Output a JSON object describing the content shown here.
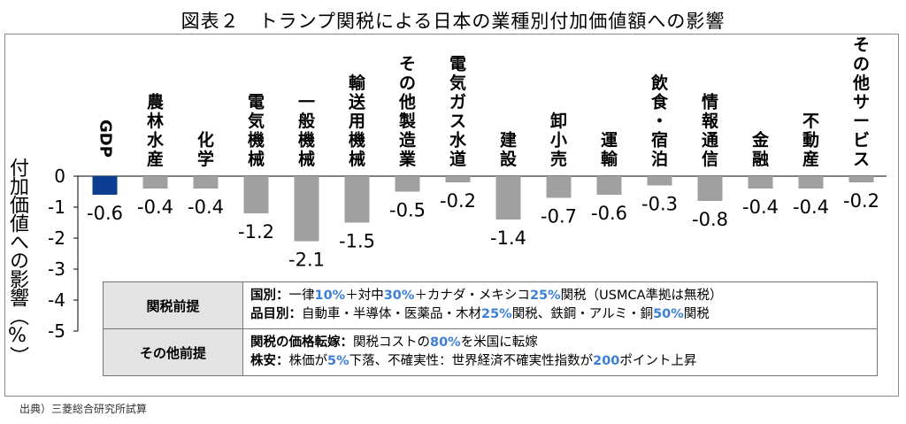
{
  "title": "図表２　トランプ関税による日本の業種別付加価値額への影響",
  "source": "出典）三菱総合研究所試算",
  "colors": {
    "highlight_bar": "#0b3d91",
    "bar": "#a0a0a0",
    "accent_text": "#3b7fd6"
  },
  "chart_data": {
    "type": "bar",
    "ylabel": "付加価値への影響（%）",
    "ylim": [
      -5,
      0
    ],
    "yticks": [
      0,
      -1,
      -2,
      -3,
      -4,
      -5
    ],
    "categories": [
      "GDP",
      "農林水産",
      "化学",
      "電気機械",
      "一般機械",
      "輸送用機械",
      "その他製造業",
      "電気ガス水道",
      "建設",
      "卸小売",
      "運輸",
      "飲食・宿泊",
      "情報通信",
      "金融",
      "不動産",
      "その他サービス"
    ],
    "values": [
      -0.6,
      -0.4,
      -0.4,
      -1.2,
      -2.1,
      -1.5,
      -0.5,
      -0.2,
      -1.4,
      -0.7,
      -0.6,
      -0.3,
      -0.8,
      -0.4,
      -0.4,
      -0.2
    ],
    "value_labels": [
      "-0.6",
      "-0.4",
      "-0.4",
      "-1.2",
      "-2.1",
      "-1.5",
      "-0.5",
      "-0.2",
      "-1.4",
      "-0.7",
      "-0.6",
      "-0.3",
      "-0.8",
      "-0.4",
      "-0.4",
      "-0.2"
    ],
    "highlight": "GDP"
  },
  "conditions": {
    "rows": [
      {
        "header": "関税前提",
        "lines": [
          [
            {
              "t": "国別：",
              "b": true
            },
            {
              "t": "一律"
            },
            {
              "t": "10%",
              "h": true
            },
            {
              "t": "＋対中"
            },
            {
              "t": "30%",
              "h": true
            },
            {
              "t": "＋カナダ・メキシコ"
            },
            {
              "t": "25%",
              "h": true
            },
            {
              "t": "関税（USMCA準拠は無税）"
            }
          ],
          [
            {
              "t": "品目別：",
              "b": true
            },
            {
              "t": "自動車・半導体・医薬品・木材"
            },
            {
              "t": "25%",
              "h": true
            },
            {
              "t": "関税、鉄鋼・アルミ・銅"
            },
            {
              "t": "50%",
              "h": true
            },
            {
              "t": "関税"
            }
          ]
        ]
      },
      {
        "header": "その他前提",
        "lines": [
          [
            {
              "t": "関税の価格転嫁：",
              "b": true
            },
            {
              "t": "関税コストの"
            },
            {
              "t": "80%",
              "h": true
            },
            {
              "t": "を米国に転嫁"
            }
          ],
          [
            {
              "t": "株安：",
              "b": true
            },
            {
              "t": "株価が"
            },
            {
              "t": "5%",
              "h": true
            },
            {
              "t": "下落、不確実性：世界経済不確実性指数が"
            },
            {
              "t": "200",
              "h": true
            },
            {
              "t": "ポイント上昇"
            }
          ]
        ]
      }
    ]
  }
}
